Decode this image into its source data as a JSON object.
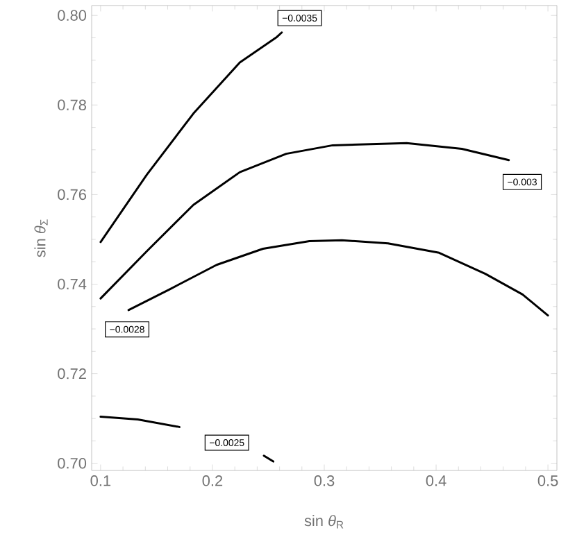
{
  "chart_data": {
    "type": "line",
    "xlabel": "sin *θ*$_{R}$",
    "ylabel": "sin *θ*$_{Σ}$",
    "series": [
      {
        "color": "#000000",
        "x": [
          0.1,
          0.1415,
          0.183,
          0.2245,
          0.2577,
          0.262
        ],
        "values": [
          0.7494,
          0.7645,
          0.7781,
          0.7895,
          0.7952,
          0.7962
        ]
      },
      {
        "color": "#000000",
        "x": [
          0.1,
          0.1415,
          0.183,
          0.2245,
          0.266,
          0.3075,
          0.3737,
          0.423,
          0.465
        ],
        "values": [
          0.7368,
          0.7474,
          0.7577,
          0.765,
          0.7691,
          0.771,
          0.7715,
          0.7702,
          0.7677
        ]
      },
      {
        "color": "#000000",
        "x": [
          0.125,
          0.1622,
          0.2037,
          0.2452,
          0.2867,
          0.3158,
          0.357,
          0.4027,
          0.444,
          0.4773,
          0.5
        ],
        "values": [
          0.7342,
          0.7389,
          0.7443,
          0.7479,
          0.7496,
          0.7498,
          0.7491,
          0.747,
          0.7423,
          0.7377,
          0.733
        ]
      },
      {
        "color": "#000000",
        "x": [
          0.1,
          0.1332,
          0.1705,
          0.18,
          0.246,
          0.2544
        ],
        "values": [
          0.7104,
          0.7098,
          0.7081,
          null,
          0.7017,
          0.7004
        ]
      }
    ],
    "xlim": [
      0.092,
      0.508
    ],
    "ylim": [
      0.6984,
      0.8022
    ],
    "xticks": [
      0.1,
      0.2,
      0.3,
      0.4,
      0.5
    ],
    "yticks": [
      {
        "value": 0.7,
        "label": "0.70"
      },
      {
        "value": 0.72,
        "label": "0.72"
      },
      {
        "value": 0.74,
        "label": "0.74"
      },
      {
        "value": 0.76,
        "label": "0.76"
      },
      {
        "value": 0.78,
        "label": "0.78"
      },
      {
        "value": 0.8,
        "label": "0.80"
      }
    ],
    "annotations": [
      {
        "text": "−0.0035",
        "x": 0.278,
        "y": 0.7994
      },
      {
        "text": "−0.003",
        "x": 0.477,
        "y": 0.7628
      },
      {
        "text": "−0.0028",
        "x": 0.1237,
        "y": 0.7299
      },
      {
        "text": "−0.0025",
        "x": 0.2129,
        "y": 0.7046
      }
    ]
  }
}
